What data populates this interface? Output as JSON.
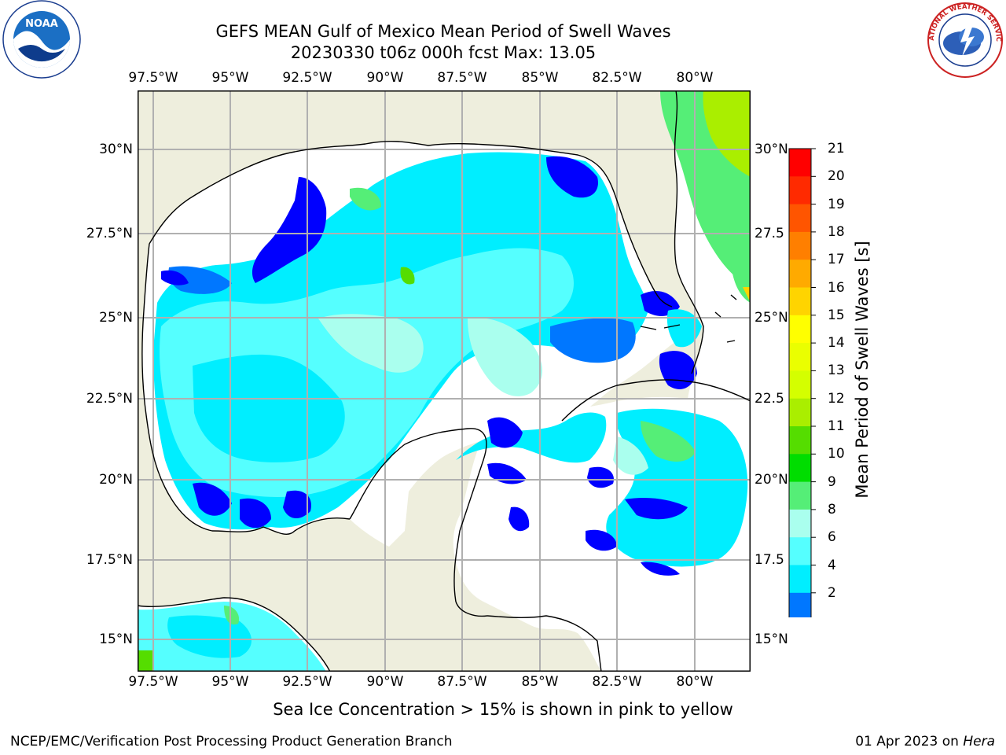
{
  "header": {
    "title_line1": "GEFS MEAN Gulf of Mexico Mean Period of Swell Waves",
    "title_line2": "20230330 t06z 000h fcst   Max: 13.05"
  },
  "logos": {
    "left": "NOAA",
    "left_ring_text": "NATIONAL OCEANIC AND ATMOSPHERIC ADMINISTRATION",
    "right": "NATIONAL WEATHER SERVICE"
  },
  "map": {
    "lon_labels": [
      "97.5°W",
      "95°W",
      "92.5°W",
      "90°W",
      "87.5°W",
      "85°W",
      "82.5°W",
      "80°W"
    ],
    "lat_labels_left": [
      "30°N",
      "27.5°N",
      "25°N",
      "22.5°N",
      "20°N",
      "17.5°N",
      "15°N"
    ],
    "lat_labels_right": [
      "30°N",
      "27.5",
      "25°N",
      "22.5",
      "20°N",
      "17.5",
      "15°N"
    ],
    "extent": {
      "lon_min": -98,
      "lon_max": -78.3,
      "lat_min": 14,
      "lat_max": 31.8
    }
  },
  "colorbar": {
    "title": "Mean Period of Swell Waves [s]",
    "ticks": [
      "21",
      "20",
      "19",
      "18",
      "17",
      "16",
      "15",
      "14",
      "13",
      "12",
      "11",
      "10",
      "9",
      "8",
      "6",
      "4",
      "2"
    ],
    "colors": [
      "#ff0000",
      "#ff2a00",
      "#ff5500",
      "#ff7f00",
      "#ffaa00",
      "#ffd400",
      "#ffff00",
      "#eaff00",
      "#d4ff00",
      "#aaee00",
      "#55dd00",
      "#00dd00",
      "#55ee77",
      "#aaffee",
      "#55ffff",
      "#00eeff",
      "#0077ff",
      "#0000ff"
    ]
  },
  "subtitle": "Sea Ice Concentration > 15% is shown in pink to yellow",
  "footer": {
    "left": "NCEP/EMC/Verification Post Processing Product Generation Branch",
    "date": "01 Apr 2023 on",
    "machine": "Hera"
  }
}
